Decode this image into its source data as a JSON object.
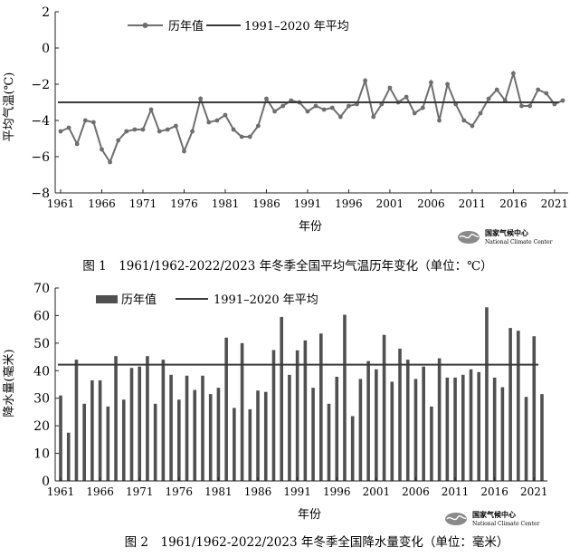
{
  "chart_data": [
    {
      "type": "line",
      "caption": "图 1　1961/1962-2022/2023 年冬季全国平均气温历年变化（单位：℃）",
      "xlabel": "年份",
      "ylabel": "平均气温(℃)",
      "x": [
        1961,
        1962,
        1963,
        1964,
        1965,
        1966,
        1967,
        1968,
        1969,
        1970,
        1971,
        1972,
        1973,
        1974,
        1975,
        1976,
        1977,
        1978,
        1979,
        1980,
        1981,
        1982,
        1983,
        1984,
        1985,
        1986,
        1987,
        1988,
        1989,
        1990,
        1991,
        1992,
        1993,
        1994,
        1995,
        1996,
        1997,
        1998,
        1999,
        2000,
        2001,
        2002,
        2003,
        2004,
        2005,
        2006,
        2007,
        2008,
        2009,
        2010,
        2011,
        2012,
        2013,
        2014,
        2015,
        2016,
        2017,
        2018,
        2019,
        2020,
        2021,
        2022
      ],
      "x_ticks": [
        "1961",
        "1966",
        "1971",
        "1976",
        "1981",
        "1986",
        "1991",
        "1996",
        "2001",
        "2006",
        "2011",
        "2016",
        "2021"
      ],
      "y_ticks": [
        "2",
        "0",
        "−2",
        "−4",
        "−6",
        "−8"
      ],
      "ylim": [
        -8,
        2
      ],
      "grid": false,
      "legend_position": "top",
      "series": [
        {
          "name": "历年值",
          "kind": "line-markers",
          "color": "#6e6e6e",
          "values": [
            -4.6,
            -4.4,
            -5.3,
            -4.0,
            -4.1,
            -5.6,
            -6.3,
            -5.1,
            -4.6,
            -4.5,
            -4.5,
            -3.4,
            -4.6,
            -4.5,
            -4.3,
            -5.7,
            -4.6,
            -2.8,
            -4.1,
            -4.0,
            -3.7,
            -4.5,
            -4.9,
            -4.9,
            -4.3,
            -2.8,
            -3.5,
            -3.2,
            -2.9,
            -3.0,
            -3.5,
            -3.2,
            -3.4,
            -3.3,
            -3.8,
            -3.2,
            -3.1,
            -1.8,
            -3.8,
            -3.1,
            -2.2,
            -3.0,
            -2.7,
            -3.6,
            -3.3,
            -1.9,
            -4.0,
            -2.0,
            -3.1,
            -4.0,
            -4.3,
            -3.6,
            -2.8,
            -2.3,
            -2.9,
            -1.4,
            -3.2,
            -3.2,
            -2.3,
            -2.5,
            -3.1,
            -2.9
          ]
        },
        {
          "name": "1991–2020 年平均",
          "kind": "reference-line",
          "color": "#3a3a3a",
          "value": -3.0
        }
      ],
      "watermark": {
        "name": "国家气候中心",
        "english": "National Climate Center"
      }
    },
    {
      "type": "bar",
      "caption": "图 2　1961/1962-2022/2023 年冬季全国降水量变化（单位：毫米）",
      "xlabel": "年份",
      "ylabel": "降水量(毫米)",
      "x": [
        1961,
        1962,
        1963,
        1964,
        1965,
        1966,
        1967,
        1968,
        1969,
        1970,
        1971,
        1972,
        1973,
        1974,
        1975,
        1976,
        1977,
        1978,
        1979,
        1980,
        1981,
        1982,
        1983,
        1984,
        1985,
        1986,
        1987,
        1988,
        1989,
        1990,
        1991,
        1992,
        1993,
        1994,
        1995,
        1996,
        1997,
        1998,
        1999,
        2000,
        2001,
        2002,
        2003,
        2004,
        2005,
        2006,
        2007,
        2008,
        2009,
        2010,
        2011,
        2012,
        2013,
        2014,
        2015,
        2016,
        2017,
        2018,
        2019,
        2020,
        2021,
        2022
      ],
      "x_ticks": [
        "1961",
        "1966",
        "1971",
        "1976",
        "1981",
        "1986",
        "1991",
        "1996",
        "2001",
        "2006",
        "2011",
        "2016",
        "2021"
      ],
      "y_ticks": [
        "0",
        "10",
        "20",
        "30",
        "40",
        "50",
        "60",
        "70"
      ],
      "ylim": [
        0,
        70
      ],
      "grid": false,
      "legend_position": "top",
      "series": [
        {
          "name": "历年值",
          "kind": "bars",
          "color": "#505050",
          "values": [
            31,
            17.5,
            44,
            28,
            36.5,
            36.5,
            27,
            45.3,
            29.5,
            41,
            41.5,
            45.3,
            28,
            44,
            38.5,
            29.5,
            38.2,
            33,
            38.2,
            31.5,
            33.8,
            52,
            26.5,
            50,
            26,
            32.8,
            32.3,
            47.5,
            59.5,
            38.5,
            47.4,
            51,
            33.8,
            53.5,
            28,
            37.8,
            60.3,
            23.5,
            37,
            43.5,
            40.5,
            53,
            36,
            48,
            44,
            37,
            41.5,
            27,
            44.5,
            37.5,
            37.5,
            38.5,
            40.5,
            39.5,
            63,
            37.5,
            34,
            55.5,
            54.5,
            30.5,
            52.5,
            31.5
          ]
        },
        {
          "name": "1991–2020 年平均",
          "kind": "reference-line",
          "color": "#3a3a3a",
          "value": 42.2
        }
      ],
      "watermark": {
        "name": "国家气候中心",
        "english": "National Climate Center"
      }
    }
  ]
}
